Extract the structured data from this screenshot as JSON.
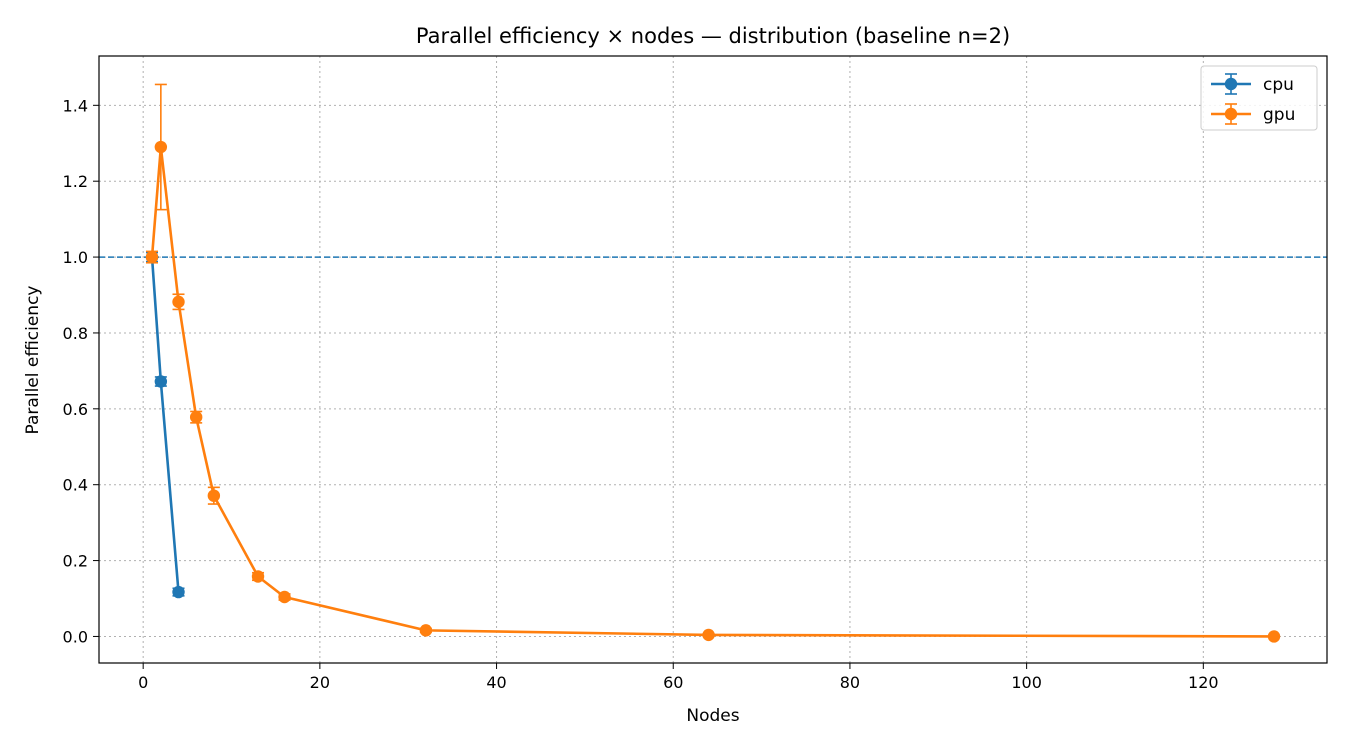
{
  "chart_data": {
    "type": "line",
    "title": "Parallel efficiency × nodes — distribution (baseline n=2)",
    "xlabel": "Nodes",
    "ylabel": "Parallel efficiency",
    "xlim": [
      -5,
      134
    ],
    "ylim": [
      -0.07,
      1.53
    ],
    "x_ticks": [
      0,
      20,
      40,
      60,
      80,
      100,
      120
    ],
    "y_ticks": [
      0.0,
      0.2,
      0.4,
      0.6,
      0.8,
      1.0,
      1.2,
      1.4
    ],
    "grid": true,
    "legend_position": "top-right",
    "reference_line": {
      "y": 1.0,
      "style": "dashed",
      "color": "#1f77b4"
    },
    "series": [
      {
        "name": "cpu",
        "color": "#1f77b4",
        "x": [
          1,
          2,
          4
        ],
        "y": [
          1.0,
          0.672,
          0.117
        ],
        "err": [
          0.012,
          0.012,
          0.01
        ]
      },
      {
        "name": "gpu",
        "color": "#ff7f0e",
        "x": [
          1,
          2,
          4,
          6,
          8,
          13,
          16,
          32,
          64,
          128
        ],
        "y": [
          1.0,
          1.29,
          0.882,
          0.578,
          0.371,
          0.158,
          0.104,
          0.016,
          0.004,
          0.0
        ],
        "err": [
          0.015,
          0.165,
          0.02,
          0.015,
          0.022,
          0.01,
          0.008,
          0.005,
          0.003,
          0.002
        ]
      }
    ]
  }
}
